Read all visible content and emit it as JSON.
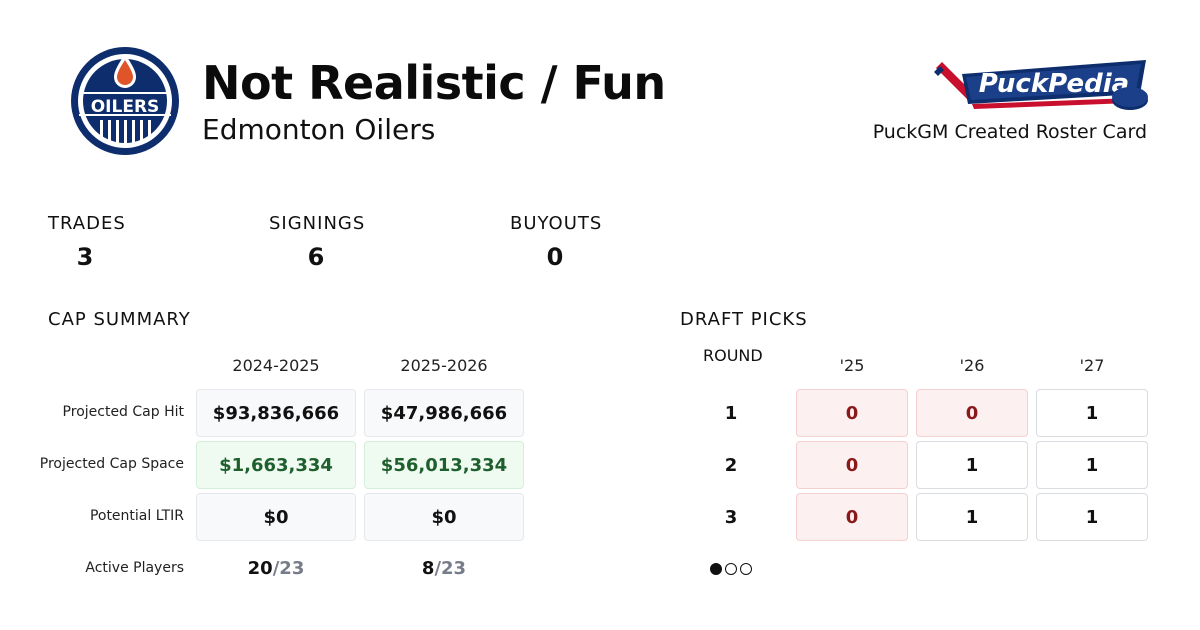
{
  "header": {
    "title": "Not Realistic / Fun",
    "team": "Edmonton Oilers",
    "team_logo_text": "OILERS",
    "brand": "PuckPedia",
    "brand_caption": "PuckGM Created Roster Card"
  },
  "colors": {
    "oilers_blue": "#0d2d6c",
    "oilers_orange": "#e0542a",
    "brand_red": "#c8102e"
  },
  "stats": {
    "trades_label": "TRADES",
    "trades": "3",
    "signings_label": "SIGNINGS",
    "signings": "6",
    "buyouts_label": "BUYOUTS",
    "buyouts": "0"
  },
  "cap": {
    "heading": "CAP SUMMARY",
    "seasons": [
      "2024-2025",
      "2025-2026"
    ],
    "rows": {
      "cap_hit": {
        "label": "Projected Cap Hit",
        "values": [
          "$93,836,666",
          "$47,986,666"
        ]
      },
      "cap_space": {
        "label": "Projected Cap Space",
        "values": [
          "$1,663,334",
          "$56,013,334"
        ]
      },
      "ltir": {
        "label": "Potential LTIR",
        "values": [
          "$0",
          "$0"
        ]
      },
      "active": {
        "label": "Active Players",
        "counts": [
          "20",
          "8"
        ],
        "max": "/23"
      }
    }
  },
  "draft": {
    "heading": "DRAFT PICKS",
    "round_label": "ROUND",
    "years": [
      "'25",
      "'26",
      "'27"
    ],
    "rounds": [
      {
        "round": "1",
        "picks": [
          "0",
          "0",
          "1"
        ]
      },
      {
        "round": "2",
        "picks": [
          "0",
          "1",
          "1"
        ]
      },
      {
        "round": "3",
        "picks": [
          "0",
          "1",
          "1"
        ]
      }
    ],
    "page_index": 1,
    "page_count": 3
  }
}
